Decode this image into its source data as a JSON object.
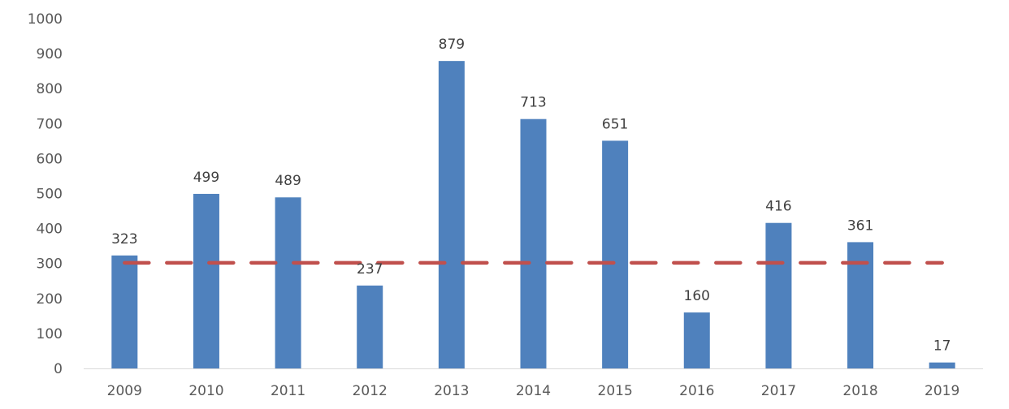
{
  "chart_data": {
    "type": "bar",
    "title": "",
    "xlabel": "",
    "ylabel": "",
    "categories": [
      "2009",
      "2010",
      "2011",
      "2012",
      "2013",
      "2014",
      "2015",
      "2016",
      "2017",
      "2018",
      "2019"
    ],
    "series": [
      {
        "values": [
          323,
          499,
          489,
          237,
          879,
          713,
          651,
          160,
          416,
          361,
          17
        ],
        "color": "#4f81bd",
        "data_labels": [
          "323",
          "499",
          "489",
          "237",
          "879",
          "713",
          "651",
          "160",
          "416",
          "361",
          "17"
        ]
      }
    ],
    "reference_line": {
      "value": 302,
      "style": "dashed",
      "color": "#c0504d"
    },
    "ylim": [
      0,
      1000
    ],
    "yticks": [
      "0",
      "100",
      "200",
      "300",
      "400",
      "500",
      "600",
      "700",
      "800",
      "900",
      "1000"
    ],
    "grid": false,
    "legend": "none"
  }
}
